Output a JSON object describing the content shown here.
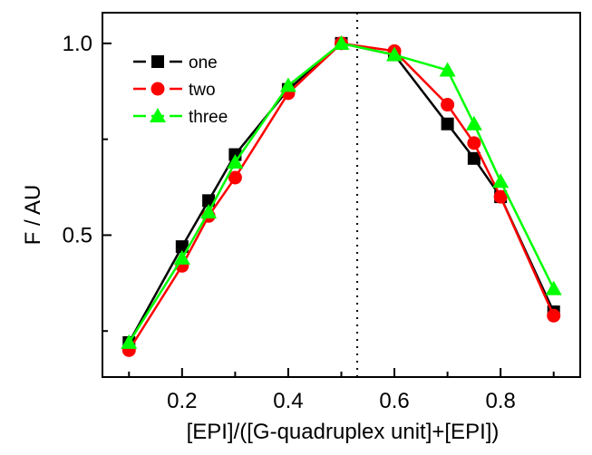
{
  "chart_data": {
    "type": "line",
    "xlabel": "[EPI]/([G-quadruplex unit]+[EPI])",
    "ylabel": "F / AU",
    "xlim": [
      0.05,
      0.95
    ],
    "ylim": [
      0.13,
      1.08
    ],
    "x_ticks": [
      0.2,
      0.4,
      0.6,
      0.8
    ],
    "x_tick_labels": [
      "0.2",
      "0.4",
      "0.6",
      "0.8"
    ],
    "y_ticks": [
      0.5,
      1.0
    ],
    "y_tick_labels": [
      "0.5",
      "1.0"
    ],
    "grid": false,
    "legend_position": "top-left",
    "reference_line": {
      "x": 0.53,
      "style": "dotted",
      "color": "#000000"
    },
    "series": [
      {
        "name": "one",
        "color": "#000000",
        "marker": "square",
        "x": [
          0.1,
          0.2,
          0.25,
          0.3,
          0.4,
          0.5,
          0.6,
          0.7,
          0.75,
          0.8,
          0.9
        ],
        "values": [
          0.22,
          0.47,
          0.59,
          0.71,
          0.88,
          1.0,
          0.97,
          0.79,
          0.7,
          0.6,
          0.3
        ]
      },
      {
        "name": "two",
        "color": "#ff0000",
        "marker": "circle",
        "x": [
          0.1,
          0.2,
          0.25,
          0.3,
          0.4,
          0.5,
          0.6,
          0.7,
          0.75,
          0.8,
          0.9
        ],
        "values": [
          0.2,
          0.42,
          0.55,
          0.65,
          0.87,
          1.0,
          0.98,
          0.84,
          0.74,
          0.6,
          0.29
        ]
      },
      {
        "name": "three",
        "color": "#00ff00",
        "marker": "triangle",
        "x": [
          0.1,
          0.2,
          0.25,
          0.3,
          0.4,
          0.5,
          0.6,
          0.7,
          0.75,
          0.8,
          0.9
        ],
        "values": [
          0.22,
          0.44,
          0.56,
          0.69,
          0.89,
          1.0,
          0.97,
          0.93,
          0.79,
          0.64,
          0.36
        ]
      }
    ]
  }
}
